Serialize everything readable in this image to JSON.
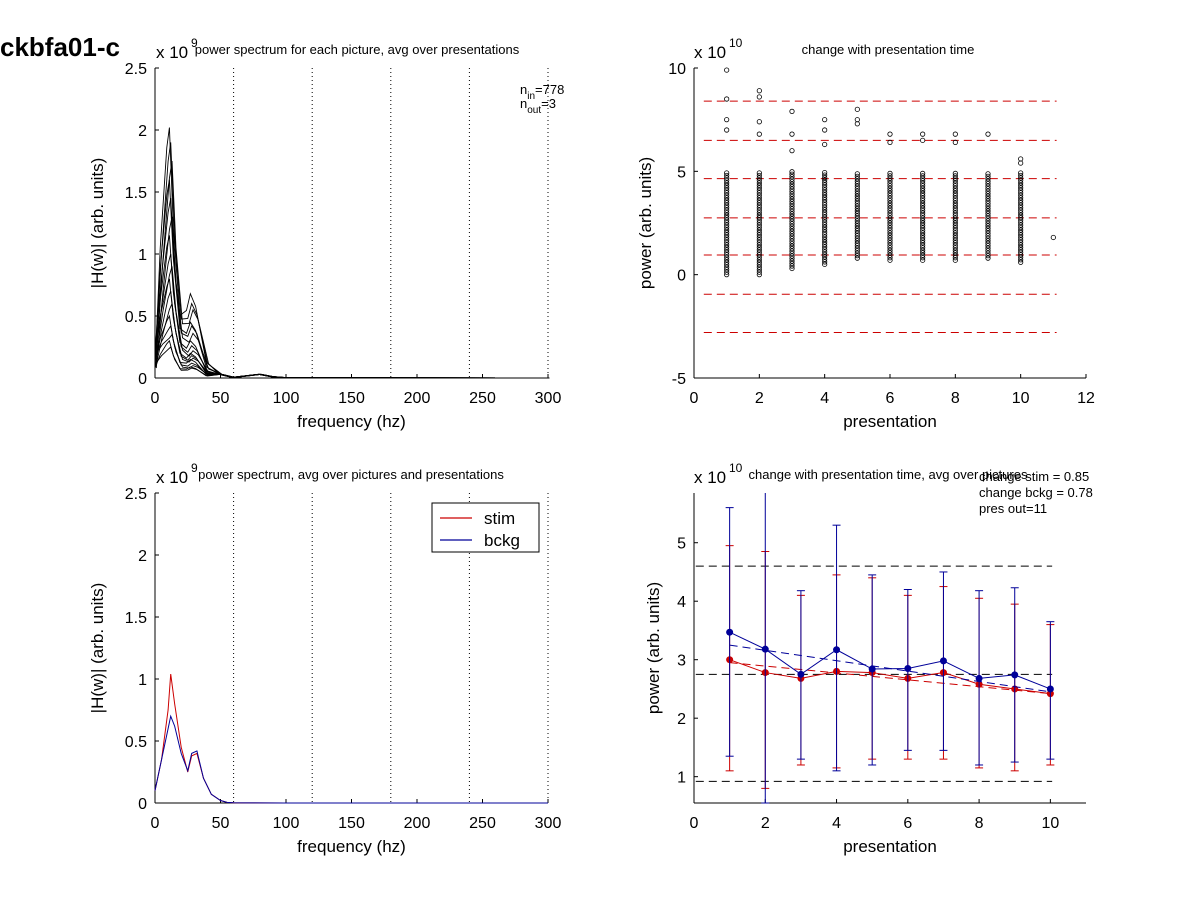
{
  "figure": {
    "page_title": "ckbfa01-c"
  },
  "chart_data": [
    {
      "type": "line",
      "title": "power spectrum for each picture, avg over presentations",
      "xlabel": "frequency (hz)",
      "ylabel": "|H(w)| (arb. units)",
      "exponent": {
        "base": "x 10",
        "power": "9"
      },
      "xlim": [
        0,
        300
      ],
      "ylim": [
        0,
        2.5
      ],
      "xticks": [
        "0",
        "50",
        "100",
        "150",
        "200",
        "250",
        "300"
      ],
      "yticks": [
        "0",
        "0.5",
        "1",
        "1.5",
        "2",
        "2.5"
      ],
      "vlines": [
        60,
        120,
        180,
        240,
        300
      ],
      "annotations": [
        {
          "main": "n",
          "sub": "in",
          "value": "=778"
        },
        {
          "main": "n",
          "sub": "out",
          "value": "=3"
        }
      ],
      "freq": [
        0,
        5,
        10,
        12,
        15,
        20,
        25,
        28,
        32,
        40,
        50,
        60,
        80,
        90,
        100,
        300
      ],
      "series_color": "#000000",
      "series_envelope": {
        "peak_heights": [
          2.02,
          1.9,
          1.75,
          1.6,
          1.45,
          1.3,
          1.15,
          1.0,
          0.9,
          0.8,
          0.7,
          0.6,
          0.5,
          0.42,
          0.35,
          0.3,
          0.25
        ],
        "second_peak_heights": [
          0.68,
          0.6,
          0.55,
          0.45,
          0.42,
          0.36,
          0.3,
          0.26,
          0.22,
          0.2,
          0.18,
          0.16,
          0.15,
          0.12,
          0.1,
          0.09,
          0.08
        ]
      },
      "grid": false
    },
    {
      "type": "scatter",
      "title": "change with presentation time",
      "xlabel": "presentation",
      "ylabel": "power (arb. units)",
      "exponent": {
        "base": "x 10",
        "power": "10"
      },
      "xlim": [
        0,
        12
      ],
      "ylim": [
        -5,
        10
      ],
      "xticks": [
        "0",
        "2",
        "4",
        "6",
        "8",
        "10",
        "12"
      ],
      "yticks": [
        "-5",
        "0",
        "5",
        "10"
      ],
      "hlines": [
        8.4,
        6.5,
        4.65,
        2.75,
        0.95,
        -0.95,
        -2.8
      ],
      "hline_color": "#cc0000",
      "marker_color": "#000000",
      "points": [
        {
          "x": 1,
          "min": 0.0,
          "max": 9.9,
          "outliers": [
            9.9,
            8.5,
            7.5,
            7.0
          ]
        },
        {
          "x": 2,
          "min": 0.0,
          "max": 8.9,
          "outliers": [
            8.9,
            8.6,
            7.4,
            6.8
          ]
        },
        {
          "x": 3,
          "min": 0.3,
          "max": 7.9,
          "outliers": [
            7.9,
            6.8,
            6.0
          ]
        },
        {
          "x": 4,
          "min": 0.5,
          "max": 7.5,
          "outliers": [
            7.5,
            7.0,
            6.3
          ]
        },
        {
          "x": 5,
          "min": 0.8,
          "max": 8.0,
          "outliers": [
            8.0,
            7.5,
            7.3
          ]
        },
        {
          "x": 6,
          "min": 0.7,
          "max": 6.8,
          "outliers": [
            6.8,
            6.4
          ]
        },
        {
          "x": 7,
          "min": 0.7,
          "max": 6.8,
          "outliers": [
            6.8,
            6.5
          ]
        },
        {
          "x": 8,
          "min": 0.7,
          "max": 6.8,
          "outliers": [
            6.8,
            6.4
          ]
        },
        {
          "x": 9,
          "min": 0.8,
          "max": 6.8,
          "outliers": [
            6.8
          ]
        },
        {
          "x": 10,
          "min": 0.6,
          "max": 5.6,
          "outliers": [
            5.6,
            5.4
          ]
        },
        {
          "x": 11,
          "min": 1.8,
          "max": 1.8,
          "outliers": []
        }
      ],
      "grid": false
    },
    {
      "type": "line",
      "title": "power spectrum, avg over pictures and presentations",
      "xlabel": "frequency (hz)",
      "ylabel": "|H(w)| (arb. units)",
      "exponent": {
        "base": "x 10",
        "power": "9"
      },
      "xlim": [
        0,
        300
      ],
      "ylim": [
        0,
        2.5
      ],
      "xticks": [
        "0",
        "50",
        "100",
        "150",
        "200",
        "250",
        "300"
      ],
      "yticks": [
        "0",
        "0.5",
        "1",
        "1.5",
        "2",
        "2.5"
      ],
      "vlines": [
        60,
        120,
        180,
        240,
        300
      ],
      "x": [
        0,
        5,
        10,
        12,
        15,
        20,
        25,
        28,
        32,
        37,
        43,
        50,
        55,
        60,
        70,
        100,
        300
      ],
      "series": [
        {
          "name": "stim",
          "color": "#cc0000",
          "values": [
            0.1,
            0.35,
            0.75,
            1.04,
            0.8,
            0.45,
            0.25,
            0.38,
            0.4,
            0.2,
            0.07,
            0.02,
            0.005,
            0.002,
            0.001,
            0.0,
            0.0
          ]
        },
        {
          "name": "bckg",
          "color": "#000099",
          "values": [
            0.1,
            0.35,
            0.6,
            0.7,
            0.62,
            0.4,
            0.26,
            0.4,
            0.42,
            0.2,
            0.07,
            0.02,
            0.005,
            0.002,
            0.001,
            0.0,
            0.0
          ]
        }
      ],
      "legend": "top-right",
      "grid": false
    },
    {
      "type": "line",
      "title": "change with presentation time, avg over pictures",
      "xlabel": "presentation",
      "ylabel": "power (arb. units)",
      "exponent": {
        "base": "x 10",
        "power": "10"
      },
      "xlim": [
        0,
        11
      ],
      "ylim": [
        0.55,
        5.85
      ],
      "xticks": [
        "0",
        "2",
        "4",
        "6",
        "8",
        "10"
      ],
      "yticks": [
        "1",
        "2",
        "3",
        "4",
        "5"
      ],
      "annotations": [
        "change stim = 0.85",
        "change bckg = 0.78",
        "pres out=11"
      ],
      "hlines": [
        4.6,
        2.75,
        0.92
      ],
      "hline_color": "#000000",
      "x": [
        1,
        2,
        3,
        4,
        5,
        6,
        7,
        8,
        9,
        10
      ],
      "series": [
        {
          "name": "stim",
          "color": "#cc0000",
          "values": [
            3.0,
            2.78,
            2.68,
            2.8,
            2.78,
            2.68,
            2.78,
            2.58,
            2.5,
            2.42
          ],
          "err_low": [
            1.1,
            0.8,
            1.2,
            1.15,
            1.3,
            1.3,
            1.3,
            1.15,
            1.1,
            1.2
          ],
          "err_high": [
            4.95,
            4.85,
            4.1,
            4.45,
            4.4,
            4.1,
            4.25,
            4.05,
            3.95,
            3.6
          ],
          "fit": [
            2.95,
            2.42
          ]
        },
        {
          "name": "bckg",
          "color": "#000099",
          "values": [
            3.47,
            3.18,
            2.75,
            3.17,
            2.84,
            2.85,
            2.98,
            2.68,
            2.74,
            2.5
          ],
          "err_low": [
            1.35,
            0.55,
            1.3,
            1.1,
            1.2,
            1.45,
            1.45,
            1.2,
            1.25,
            1.3
          ],
          "err_high": [
            5.6,
            5.9,
            4.18,
            5.3,
            4.45,
            4.2,
            4.5,
            4.18,
            4.23,
            3.65
          ],
          "fit": [
            3.25,
            2.45
          ]
        }
      ],
      "grid": false
    }
  ]
}
